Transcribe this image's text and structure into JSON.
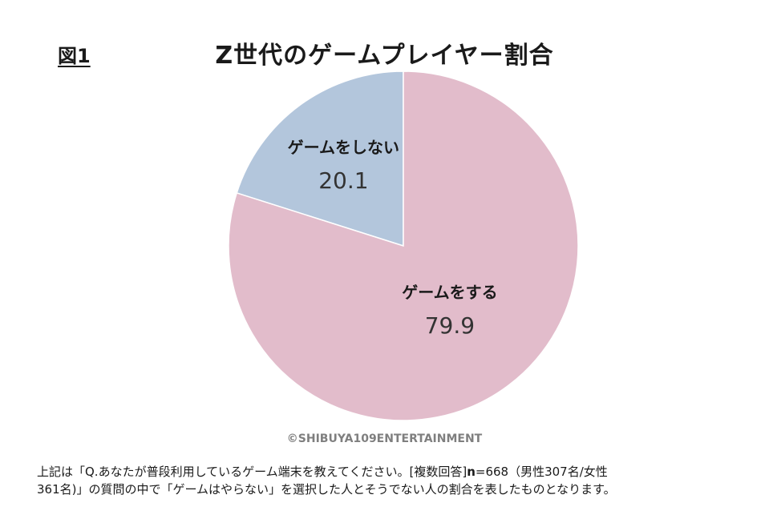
{
  "figure_label": "図1",
  "footnote": {
    "part1": "上記は「Q.あなたが普段利用しているゲーム端末を教えてください。[複数回答]",
    "n_label": "n",
    "part2": "=668（男性307名/女性",
    "line2": "361名)」の質問の中で「ゲームはやらない」を選択した人とそうでない人の割合を表したものとなります。"
  },
  "copyright": "©SHIBUYA109ENTERTAINMENT",
  "colors": {
    "play": "#e2bccb",
    "no_play": "#b3c6dc"
  },
  "chart_data": {
    "type": "pie",
    "title": "Z世代のゲームプレイヤー割合",
    "slices": [
      {
        "label": "ゲームをしない",
        "value": 20.1
      },
      {
        "label": "ゲームをする",
        "value": 79.9
      }
    ]
  }
}
